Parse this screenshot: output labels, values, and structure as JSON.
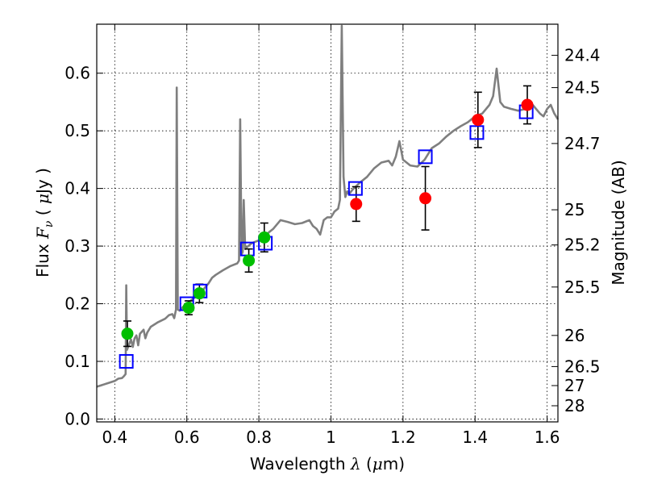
{
  "chart_data": {
    "type": "scatter",
    "xlabel": {
      "prefix": "Wavelength  ",
      "symbol": "λ",
      "suffix": " (",
      "unit_symbol": "μ",
      "unit": "m)"
    },
    "ylabel": {
      "prefix": "Flux  ",
      "symbol": "F",
      "subscript": "ν",
      "suffix": "  ( ",
      "unit_symbol": "μ",
      "unit": "Jy )"
    },
    "y2label": "Magnitude (AB)",
    "xlim": [
      0.35,
      1.63
    ],
    "ylim": [
      -0.005,
      0.685
    ],
    "grid": true,
    "x_ticks": [
      {
        "v": 0.4,
        "label": "0.4"
      },
      {
        "v": 0.6,
        "label": "0.6"
      },
      {
        "v": 0.8,
        "label": "0.8"
      },
      {
        "v": 1.0,
        "label": "1"
      },
      {
        "v": 1.2,
        "label": "1.2"
      },
      {
        "v": 1.4,
        "label": "1.4"
      },
      {
        "v": 1.6,
        "label": "1.6"
      }
    ],
    "y_ticks": [
      {
        "v": 0.0,
        "label": "0.0"
      },
      {
        "v": 0.1,
        "label": "0.1"
      },
      {
        "v": 0.2,
        "label": "0.2"
      },
      {
        "v": 0.3,
        "label": "0.3"
      },
      {
        "v": 0.4,
        "label": "0.4"
      },
      {
        "v": 0.5,
        "label": "0.5"
      },
      {
        "v": 0.6,
        "label": "0.6"
      }
    ],
    "y2_ticks": [
      {
        "flux": 0.631,
        "label": "24.4"
      },
      {
        "flux": 0.575,
        "label": "24.5"
      },
      {
        "flux": 0.478,
        "label": "24.7"
      },
      {
        "flux": 0.363,
        "label": "25"
      },
      {
        "flux": 0.302,
        "label": "25.2"
      },
      {
        "flux": 0.229,
        "label": "25.5"
      },
      {
        "flux": 0.145,
        "label": "26"
      },
      {
        "flux": 0.091,
        "label": "26.5"
      },
      {
        "flux": 0.058,
        "label": "27"
      },
      {
        "flux": 0.023,
        "label": "28"
      }
    ],
    "colors": {
      "model": "#7f7f7f",
      "green": "#00bf00",
      "red": "#ff0000",
      "model_points": "#0000ff",
      "errorbar": "#000000"
    },
    "model_sed": [
      [
        0.35,
        0.056
      ],
      [
        0.36,
        0.058
      ],
      [
        0.38,
        0.062
      ],
      [
        0.4,
        0.066
      ],
      [
        0.41,
        0.07
      ],
      [
        0.42,
        0.071
      ],
      [
        0.425,
        0.074
      ],
      [
        0.43,
        0.078
      ],
      [
        0.432,
        0.232
      ],
      [
        0.434,
        0.12
      ],
      [
        0.44,
        0.13
      ],
      [
        0.445,
        0.138
      ],
      [
        0.45,
        0.125
      ],
      [
        0.455,
        0.14
      ],
      [
        0.46,
        0.145
      ],
      [
        0.465,
        0.128
      ],
      [
        0.47,
        0.148
      ],
      [
        0.48,
        0.155
      ],
      [
        0.485,
        0.14
      ],
      [
        0.49,
        0.15
      ],
      [
        0.5,
        0.16
      ],
      [
        0.52,
        0.168
      ],
      [
        0.54,
        0.174
      ],
      [
        0.55,
        0.18
      ],
      [
        0.56,
        0.182
      ],
      [
        0.565,
        0.175
      ],
      [
        0.57,
        0.19
      ],
      [
        0.572,
        0.575
      ],
      [
        0.575,
        0.19
      ],
      [
        0.58,
        0.188
      ],
      [
        0.59,
        0.195
      ],
      [
        0.6,
        0.2
      ],
      [
        0.61,
        0.205
      ],
      [
        0.62,
        0.21
      ],
      [
        0.63,
        0.215
      ],
      [
        0.64,
        0.22
      ],
      [
        0.65,
        0.228
      ],
      [
        0.66,
        0.235
      ],
      [
        0.67,
        0.245
      ],
      [
        0.68,
        0.25
      ],
      [
        0.7,
        0.258
      ],
      [
        0.72,
        0.265
      ],
      [
        0.74,
        0.27
      ],
      [
        0.745,
        0.275
      ],
      [
        0.748,
        0.52
      ],
      [
        0.752,
        0.285
      ],
      [
        0.755,
        0.29
      ],
      [
        0.758,
        0.38
      ],
      [
        0.762,
        0.295
      ],
      [
        0.77,
        0.3
      ],
      [
        0.78,
        0.305
      ],
      [
        0.8,
        0.31
      ],
      [
        0.82,
        0.32
      ],
      [
        0.84,
        0.33
      ],
      [
        0.86,
        0.345
      ],
      [
        0.88,
        0.342
      ],
      [
        0.9,
        0.338
      ],
      [
        0.92,
        0.34
      ],
      [
        0.94,
        0.345
      ],
      [
        0.95,
        0.335
      ],
      [
        0.96,
        0.33
      ],
      [
        0.97,
        0.32
      ],
      [
        0.98,
        0.345
      ],
      [
        0.99,
        0.35
      ],
      [
        1.0,
        0.35
      ],
      [
        1.01,
        0.36
      ],
      [
        1.02,
        0.365
      ],
      [
        1.025,
        0.38
      ],
      [
        1.03,
        0.682
      ],
      [
        1.035,
        0.42
      ],
      [
        1.04,
        0.385
      ],
      [
        1.045,
        0.395
      ],
      [
        1.05,
        0.39
      ],
      [
        1.06,
        0.398
      ],
      [
        1.08,
        0.41
      ],
      [
        1.1,
        0.42
      ],
      [
        1.12,
        0.435
      ],
      [
        1.14,
        0.445
      ],
      [
        1.16,
        0.448
      ],
      [
        1.17,
        0.44
      ],
      [
        1.18,
        0.455
      ],
      [
        1.19,
        0.482
      ],
      [
        1.2,
        0.45
      ],
      [
        1.22,
        0.44
      ],
      [
        1.24,
        0.438
      ],
      [
        1.26,
        0.45
      ],
      [
        1.28,
        0.47
      ],
      [
        1.3,
        0.478
      ],
      [
        1.32,
        0.49
      ],
      [
        1.34,
        0.5
      ],
      [
        1.36,
        0.508
      ],
      [
        1.38,
        0.515
      ],
      [
        1.4,
        0.525
      ],
      [
        1.42,
        0.53
      ],
      [
        1.44,
        0.545
      ],
      [
        1.45,
        0.56
      ],
      [
        1.46,
        0.608
      ],
      [
        1.47,
        0.55
      ],
      [
        1.48,
        0.542
      ],
      [
        1.5,
        0.538
      ],
      [
        1.52,
        0.535
      ],
      [
        1.54,
        0.538
      ],
      [
        1.56,
        0.545
      ],
      [
        1.58,
        0.53
      ],
      [
        1.59,
        0.525
      ],
      [
        1.6,
        0.538
      ],
      [
        1.61,
        0.545
      ],
      [
        1.62,
        0.53
      ],
      [
        1.63,
        0.52
      ]
    ],
    "green_points": [
      {
        "x": 0.435,
        "y": 0.148,
        "err": 0.022
      },
      {
        "x": 0.605,
        "y": 0.193,
        "err": 0.012
      },
      {
        "x": 0.635,
        "y": 0.218,
        "err": 0.016
      },
      {
        "x": 0.772,
        "y": 0.275,
        "err": 0.02
      },
      {
        "x": 0.815,
        "y": 0.315,
        "err": 0.025
      }
    ],
    "red_points": [
      {
        "x": 1.07,
        "y": 0.373,
        "err": 0.03
      },
      {
        "x": 1.262,
        "y": 0.383,
        "err": 0.055
      },
      {
        "x": 1.408,
        "y": 0.519,
        "err": 0.048
      },
      {
        "x": 1.545,
        "y": 0.545,
        "err": 0.033
      }
    ],
    "model_points": [
      {
        "x": 0.432,
        "y": 0.1
      },
      {
        "x": 0.6,
        "y": 0.2
      },
      {
        "x": 0.637,
        "y": 0.222
      },
      {
        "x": 0.768,
        "y": 0.295
      },
      {
        "x": 0.818,
        "y": 0.305
      },
      {
        "x": 1.068,
        "y": 0.4
      },
      {
        "x": 1.262,
        "y": 0.455
      },
      {
        "x": 1.405,
        "y": 0.497
      },
      {
        "x": 1.542,
        "y": 0.533
      }
    ]
  }
}
